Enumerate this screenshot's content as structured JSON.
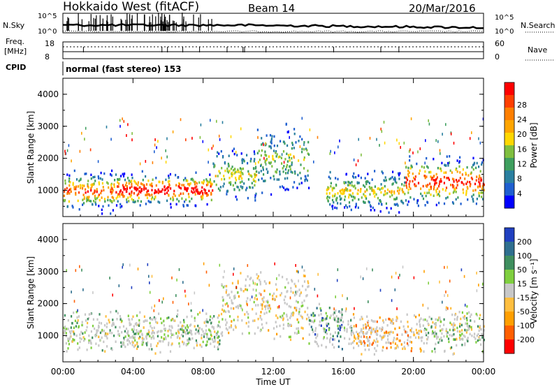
{
  "header": {
    "title": "Hokkaido West (fitACF)",
    "beam": "Beam 14",
    "date": "20/Mar/2016"
  },
  "top_panels": {
    "nsky_label": "N.Sky",
    "nsky_ticks": [
      "10^5",
      "10^0"
    ],
    "nsearch_label": "N.Search",
    "nsearch_ticks": [
      "10^5",
      "10^0"
    ],
    "freq_label": "Freq.",
    "freq_unit": "[MHz]",
    "freq_ticks": [
      "18",
      "8"
    ],
    "nave_label": "Nave",
    "nave_ticks": [
      "60",
      "0"
    ],
    "cpid_label": "CPID",
    "cpid_text": "normal (fast stereo) 153"
  },
  "chart_data": [
    {
      "type": "heatmap",
      "name": "power-panel",
      "xlabel": "",
      "ylabel": "Slant Range [km]",
      "x_ticks": [
        "00:00",
        "04:00",
        "08:00",
        "12:00",
        "16:00",
        "20:00",
        "00:00"
      ],
      "y_ticks": [
        "1000",
        "2000",
        "3000",
        "4000"
      ],
      "xlim_hours": [
        0,
        24
      ],
      "ylim_km": [
        180,
        4500
      ],
      "colorbar": {
        "label": "Power [dB]",
        "ticks": [
          "4",
          "8",
          "12",
          "16",
          "20",
          "24",
          "28"
        ],
        "colors": [
          "#0000ff",
          "#1f5fd0",
          "#2a7fa0",
          "#3f9f5f",
          "#7fbf3f",
          "#ffd700",
          "#ffa500",
          "#ff7f00",
          "#ff3f00",
          "#ff0000"
        ]
      },
      "bands": [
        {
          "t0": 0.0,
          "t1": 3.0,
          "r_center": 1000,
          "r_width": 700,
          "level": 0.55
        },
        {
          "t0": 3.0,
          "t1": 8.5,
          "r_center": 1050,
          "r_width": 600,
          "level": 0.7
        },
        {
          "t0": 8.5,
          "t1": 11.0,
          "r_center": 1500,
          "r_width": 900,
          "level": 0.3
        },
        {
          "t0": 11.0,
          "t1": 14.0,
          "r_center": 2000,
          "r_width": 1200,
          "level": 0.25
        },
        {
          "t0": 15.0,
          "t1": 19.5,
          "r_center": 1000,
          "r_width": 700,
          "level": 0.35
        },
        {
          "t0": 19.5,
          "t1": 24.0,
          "r_center": 1300,
          "r_width": 900,
          "level": 0.6
        }
      ]
    },
    {
      "type": "heatmap",
      "name": "velocity-panel",
      "xlabel": "Time UT",
      "ylabel": "Slant Range [km]",
      "x_ticks": [
        "00:00",
        "04:00",
        "08:00",
        "12:00",
        "16:00",
        "20:00",
        "00:00"
      ],
      "y_ticks": [
        "1000",
        "2000",
        "3000",
        "4000"
      ],
      "xlim_hours": [
        0,
        24
      ],
      "ylim_km": [
        180,
        4500
      ],
      "colorbar": {
        "label": "Velocity [m s⁻¹]",
        "ticks": [
          "200",
          "100",
          "50",
          "15",
          "-15",
          "-50",
          "-100",
          "-200"
        ],
        "colors": [
          "#2040c0",
          "#2f6f8f",
          "#3f8f5f",
          "#7fcf3f",
          "#c8c8c8",
          "#ffbf3f",
          "#ff9f00",
          "#ff5f00",
          "#ff0000"
        ]
      },
      "bands": [
        {
          "t0": 0.0,
          "t1": 9.0,
          "r_center": 1150,
          "r_width": 700,
          "level": 0.5
        },
        {
          "t0": 9.0,
          "t1": 14.0,
          "r_center": 2000,
          "r_width": 1200,
          "level": 0.6
        },
        {
          "t0": 14.0,
          "t1": 16.5,
          "r_center": 1300,
          "r_width": 800,
          "level": 0.3
        },
        {
          "t0": 16.5,
          "t1": 20.5,
          "r_center": 1100,
          "r_width": 700,
          "level": 0.75
        },
        {
          "t0": 20.5,
          "t1": 24.0,
          "r_center": 1200,
          "r_width": 800,
          "level": 0.5
        }
      ]
    }
  ]
}
